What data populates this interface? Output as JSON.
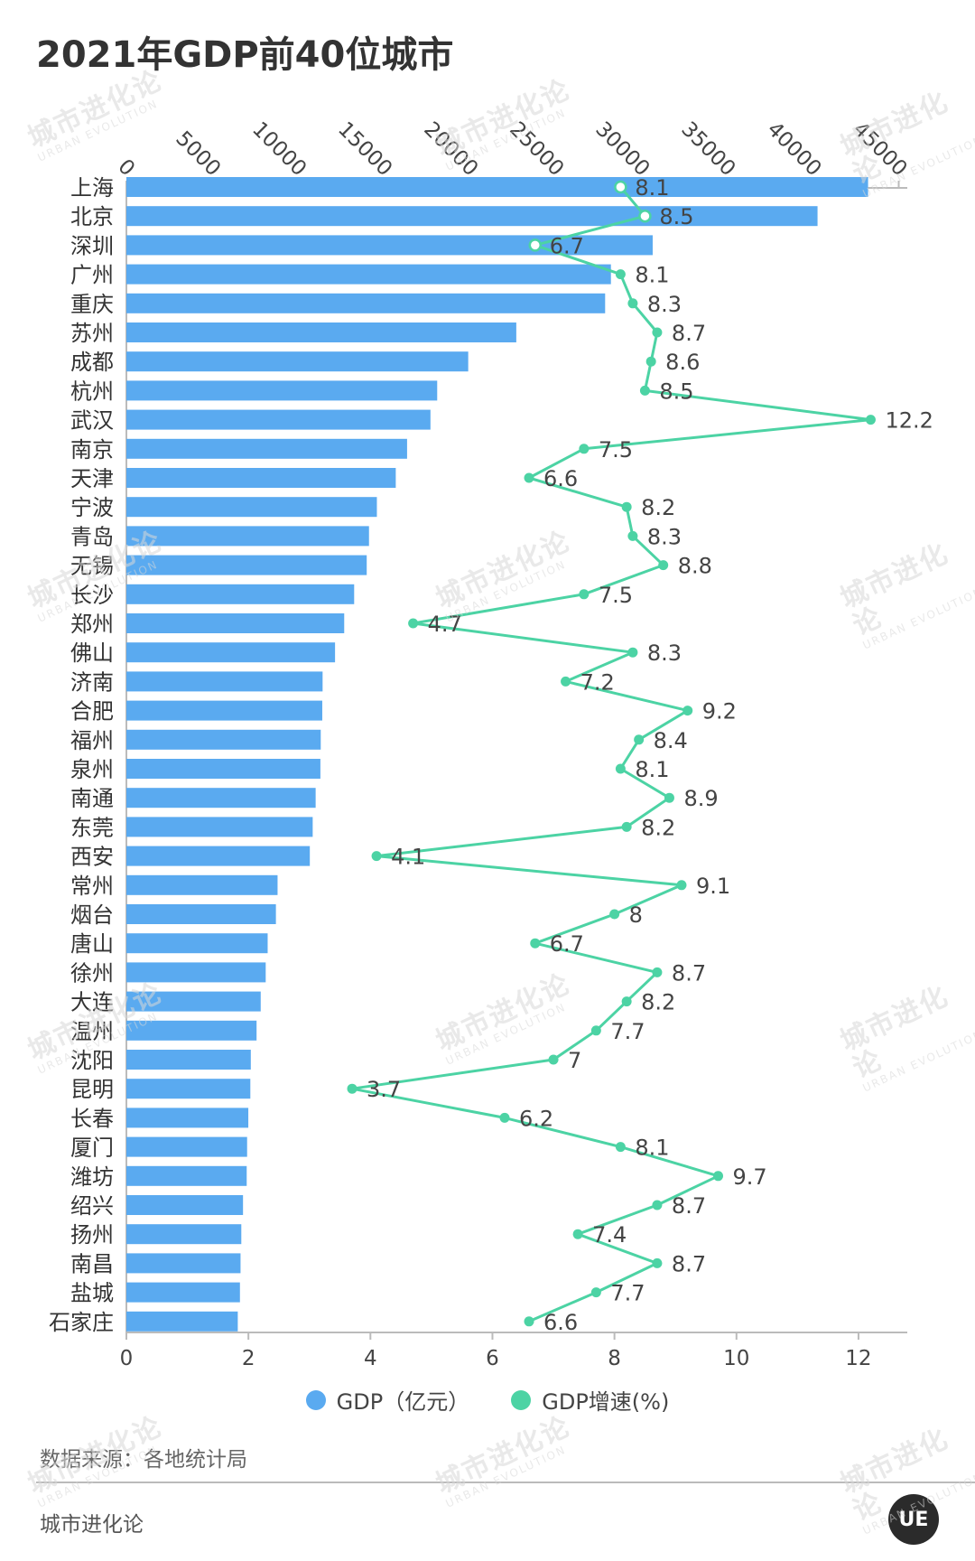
{
  "title": "2021年GDP前40位城市",
  "legend": [
    {
      "label": "GDP（亿元）",
      "color": "#5aaaf0"
    },
    {
      "label": "GDP增速(%)",
      "color": "#4cd3a4"
    }
  ],
  "source": "数据来源：各地统计局",
  "brand": "城市进化论",
  "logo_text": "UE",
  "watermark": {
    "cn": "城市进化论",
    "en": "URBAN EVOLUTION"
  },
  "chart_data": {
    "type": "bar",
    "orientation": "horizontal",
    "categories": [
      "上海",
      "北京",
      "深圳",
      "广州",
      "重庆",
      "苏州",
      "成都",
      "杭州",
      "武汉",
      "南京",
      "天津",
      "宁波",
      "青岛",
      "无锡",
      "长沙",
      "郑州",
      "佛山",
      "济南",
      "合肥",
      "福州",
      "泉州",
      "南通",
      "东莞",
      "西安",
      "常州",
      "烟台",
      "唐山",
      "徐州",
      "大连",
      "温州",
      "沈阳",
      "昆明",
      "长春",
      "厦门",
      "潍坊",
      "绍兴",
      "扬州",
      "南昌",
      "盐城",
      "石家庄"
    ],
    "series": [
      {
        "name": "GDP（亿元）",
        "type": "bar",
        "axis": "top",
        "values": [
          43215,
          40270,
          30665,
          28232,
          27894,
          22718,
          19917,
          18109,
          17717,
          16355,
          15695,
          14595,
          14136,
          14003,
          13271,
          12691,
          12157,
          11432,
          11413,
          11324,
          11304,
          11027,
          10855,
          10688,
          8808,
          8712,
          8231,
          8117,
          7826,
          7585,
          7249,
          7222,
          7104,
          7034,
          7010,
          6795,
          6696,
          6651,
          6617,
          6490
        ]
      },
      {
        "name": "GDP增速(%)",
        "type": "line",
        "axis": "bottom",
        "values": [
          8.1,
          8.5,
          6.7,
          8.1,
          8.3,
          8.7,
          8.6,
          8.5,
          12.2,
          7.5,
          6.6,
          8.2,
          8.3,
          8.8,
          7.5,
          4.7,
          8.3,
          7.2,
          9.2,
          8.4,
          8.1,
          8.9,
          8.2,
          4.1,
          9.1,
          8,
          6.7,
          8.7,
          8.2,
          7.7,
          7,
          3.7,
          6.2,
          8.1,
          9.7,
          8.7,
          7.4,
          8.7,
          7.7,
          6.6
        ]
      }
    ],
    "x_top": {
      "range": [
        0,
        45500
      ],
      "ticks": [
        "0",
        "5000",
        "10000",
        "15000",
        "20000",
        "25000",
        "30000",
        "35000",
        "40000",
        "45000"
      ]
    },
    "x_bottom": {
      "range": [
        0,
        12.8
      ],
      "ticks": [
        "0",
        "2",
        "4",
        "6",
        "8",
        "10",
        "12"
      ]
    },
    "grid": false,
    "legend_position": "bottom-center"
  }
}
